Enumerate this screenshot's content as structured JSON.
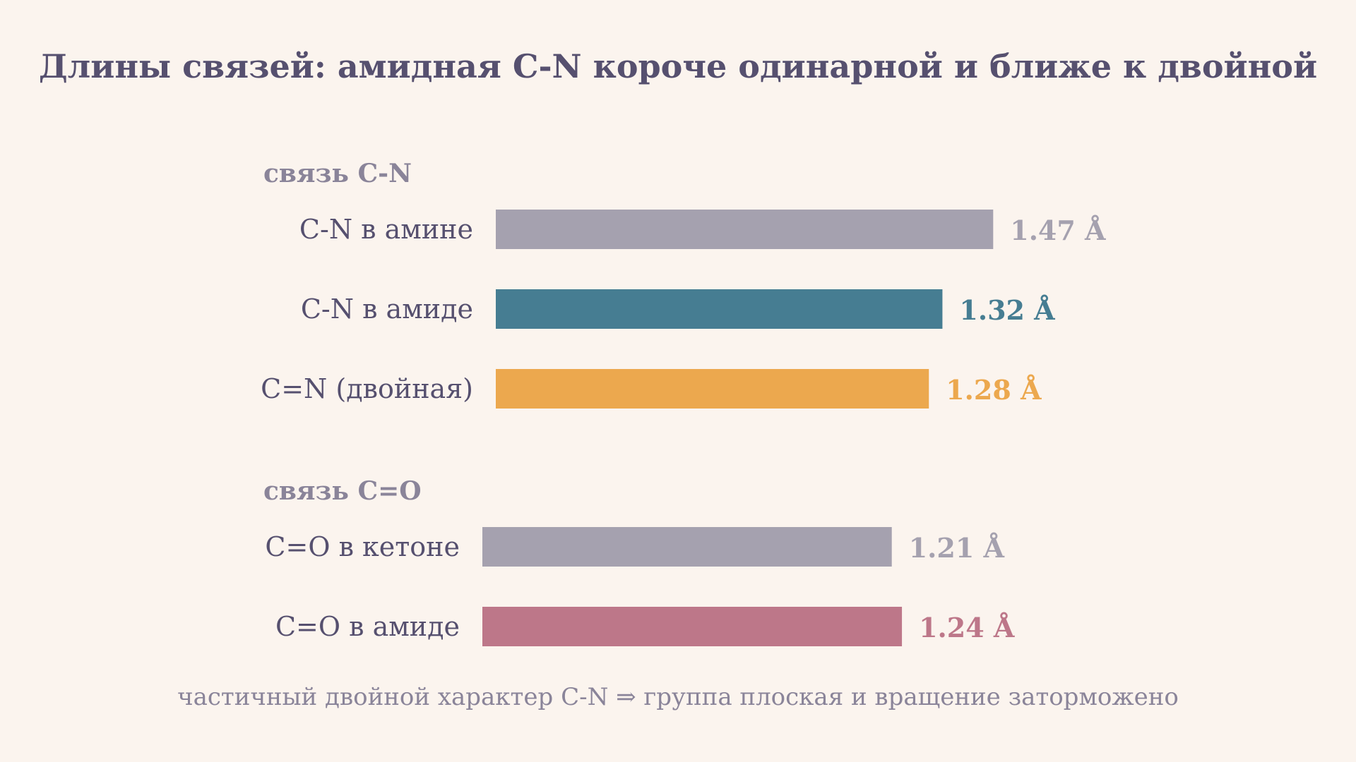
{
  "chart_data": {
    "type": "bar",
    "orientation": "horizontal",
    "title": "Длины связей: амидная C-N короче одинарной и ближе к двойной",
    "unit": "Å",
    "groups": [
      {
        "label": "связь C-N",
        "bars": [
          {
            "category": "C-N в амине",
            "value": 1.47,
            "value_label": "1.47 Å",
            "color": "#a5a1af"
          },
          {
            "category": "C-N в амиде",
            "value": 1.32,
            "value_label": "1.32 Å",
            "color": "#467d92"
          },
          {
            "category": "C=N (двойная)",
            "value": 1.28,
            "value_label": "1.28 Å",
            "color": "#eca84e"
          }
        ]
      },
      {
        "label": "связь C=O",
        "bars": [
          {
            "category": "C=O в кетоне",
            "value": 1.21,
            "value_label": "1.21 Å",
            "color": "#a5a1af"
          },
          {
            "category": "C=O в амиде",
            "value": 1.24,
            "value_label": "1.24 Å",
            "color": "#bd7789"
          }
        ]
      }
    ],
    "footnote": "частичный двойной характер C-N ⇒ группа плоская и вращение заторможено",
    "grid": false,
    "legend": "none"
  }
}
